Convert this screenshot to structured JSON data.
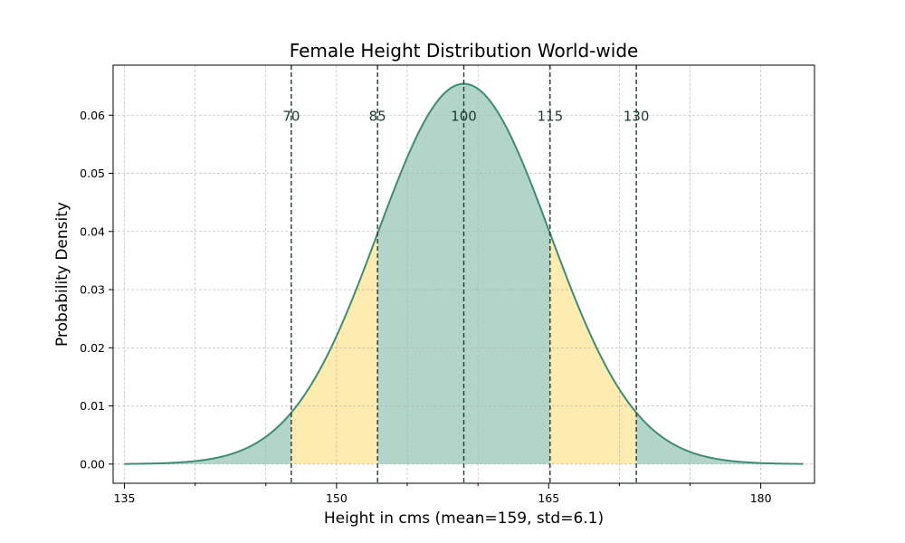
{
  "chart_data": {
    "type": "area",
    "title": "Female Height Distribution World-wide",
    "xlabel": "Height in cms (mean=159, std=6.1)",
    "ylabel": "Probability Density",
    "mean": 159,
    "std": 6.1,
    "x_range": [
      135,
      183
    ],
    "xlim": [
      134.2,
      183.8
    ],
    "ylim": [
      -0.0033,
      0.0686
    ],
    "x_ticks": [
      135,
      150,
      165,
      180
    ],
    "x_tick_labels": [
      "135",
      "150",
      "165",
      "180"
    ],
    "y_ticks": [
      0.0,
      0.01,
      0.02,
      0.03,
      0.04,
      0.05,
      0.06
    ],
    "y_tick_labels": [
      "0.00",
      "0.01",
      "0.02",
      "0.03",
      "0.04",
      "0.05",
      "0.06"
    ],
    "markers": [
      {
        "label": "70",
        "x": 146.8
      },
      {
        "label": "85",
        "x": 152.9
      },
      {
        "label": "100",
        "x": 159.0
      },
      {
        "label": "115",
        "x": 165.1
      },
      {
        "label": "130",
        "x": 171.2
      }
    ],
    "bands": [
      {
        "from": 146.8,
        "to": 152.9,
        "color": "#fdebb0"
      },
      {
        "from": 152.9,
        "to": 165.1,
        "color": "#b3d4c8"
      },
      {
        "from": 165.1,
        "to": 171.2,
        "color": "#fdebb0"
      }
    ],
    "tail_color": "#b3d4c8",
    "line_color": "#3f8c70",
    "marker_color": "#1d3a2f",
    "grid": true
  }
}
